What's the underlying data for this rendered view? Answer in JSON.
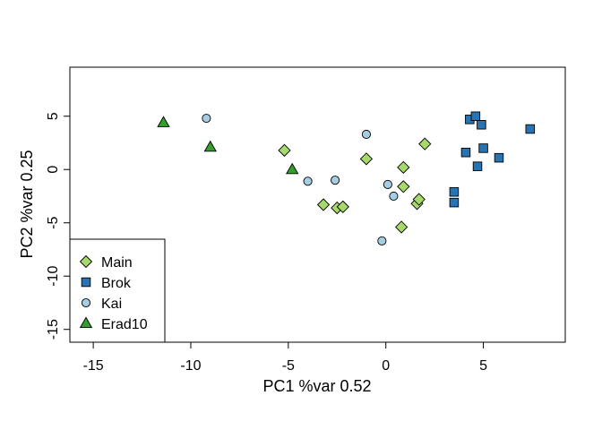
{
  "chart_data": {
    "type": "scatter",
    "xlabel": "PC1 %var 0.52",
    "ylabel": "PC2 %var 0.25",
    "xlim": [
      -16.2,
      9.2
    ],
    "ylim": [
      -16.2,
      9.6
    ],
    "xticks": [
      -15,
      -10,
      -5,
      0,
      5
    ],
    "yticks": [
      -15,
      -10,
      -5,
      0,
      5
    ],
    "grid": false,
    "legend_position": "bottom-left",
    "series": [
      {
        "name": "Main",
        "shape": "diamond",
        "color": "#a6d96a",
        "points": [
          {
            "x": -5.2,
            "y": 1.8
          },
          {
            "x": -1.0,
            "y": 1.0
          },
          {
            "x": 0.9,
            "y": 0.2
          },
          {
            "x": 2.0,
            "y": 2.4
          },
          {
            "x": -3.2,
            "y": -3.3
          },
          {
            "x": -2.5,
            "y": -3.6
          },
          {
            "x": -2.2,
            "y": -3.5
          },
          {
            "x": 0.9,
            "y": -1.6
          },
          {
            "x": 1.6,
            "y": -3.2
          },
          {
            "x": 1.7,
            "y": -2.8
          },
          {
            "x": 0.8,
            "y": -5.4
          }
        ]
      },
      {
        "name": "Brok",
        "shape": "square",
        "color": "#2874b2",
        "points": [
          {
            "x": 4.3,
            "y": 4.7
          },
          {
            "x": 4.6,
            "y": 5.0
          },
          {
            "x": 4.9,
            "y": 4.2
          },
          {
            "x": 7.4,
            "y": 3.8
          },
          {
            "x": 4.1,
            "y": 1.6
          },
          {
            "x": 5.0,
            "y": 2.0
          },
          {
            "x": 5.8,
            "y": 1.1
          },
          {
            "x": 4.7,
            "y": 0.3
          },
          {
            "x": 3.5,
            "y": -2.1
          },
          {
            "x": 3.5,
            "y": -3.1
          }
        ]
      },
      {
        "name": "Kai",
        "shape": "circle",
        "color": "#a6cee3",
        "points": [
          {
            "x": -9.2,
            "y": 4.8
          },
          {
            "x": -1.0,
            "y": 3.3
          },
          {
            "x": -4.0,
            "y": -1.1
          },
          {
            "x": -2.6,
            "y": -1.0
          },
          {
            "x": 0.1,
            "y": -1.4
          },
          {
            "x": 0.4,
            "y": -2.5
          },
          {
            "x": -0.2,
            "y": -6.7
          }
        ]
      },
      {
        "name": "Erad10",
        "shape": "triangle",
        "color": "#33a02c",
        "points": [
          {
            "x": -11.4,
            "y": 4.4
          },
          {
            "x": -9.0,
            "y": 2.1
          },
          {
            "x": -4.8,
            "y": 0.0
          }
        ]
      }
    ]
  }
}
